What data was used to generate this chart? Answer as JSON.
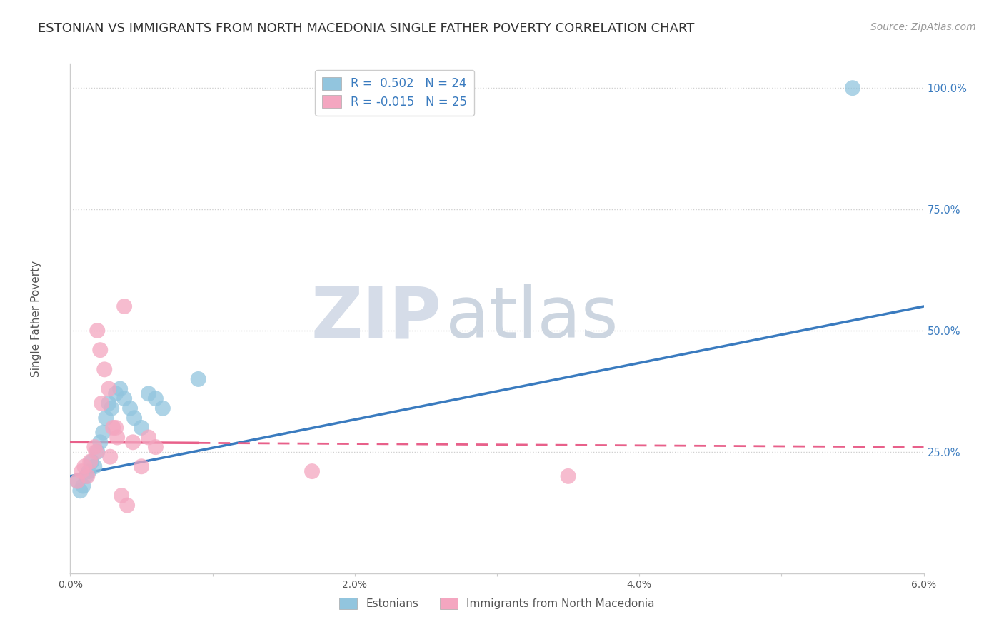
{
  "title": "ESTONIAN VS IMMIGRANTS FROM NORTH MACEDONIA SINGLE FATHER POVERTY CORRELATION CHART",
  "source": "Source: ZipAtlas.com",
  "ylabel": "Single Father Poverty",
  "xmin": 0.0,
  "xmax": 6.0,
  "ymin": 0.0,
  "ymax": 105.0,
  "yticks": [
    25,
    50,
    75,
    100
  ],
  "ytick_labels": [
    "25.0%",
    "50.0%",
    "75.0%",
    "100.0%"
  ],
  "xticks": [
    0,
    1,
    2,
    3,
    4,
    5,
    6
  ],
  "xtick_labels": [
    "0.0%",
    "",
    "2.0%",
    "",
    "4.0%",
    "",
    "6.0%"
  ],
  "watermark_part1": "ZIP",
  "watermark_part2": "atlas",
  "blue_R": " 0.502",
  "blue_N": "24",
  "pink_R": "-0.015",
  "pink_N": "25",
  "legend_label1": "Estonians",
  "legend_label2": "Immigrants from North Macedonia",
  "blue_color": "#92c5de",
  "pink_color": "#f4a6c0",
  "blue_line_color": "#3a7bbf",
  "pink_line_color": "#e8608a",
  "blue_line_x0": 0.0,
  "blue_line_y0": 20.0,
  "blue_line_x1": 6.0,
  "blue_line_y1": 55.0,
  "pink_line_x0": 0.0,
  "pink_line_y0": 27.0,
  "pink_line_x1": 6.0,
  "pink_line_y1": 26.0,
  "blue_scatter_x": [
    0.05,
    0.07,
    0.09,
    0.11,
    0.13,
    0.15,
    0.17,
    0.19,
    0.21,
    0.23,
    0.25,
    0.27,
    0.29,
    0.32,
    0.35,
    0.38,
    0.42,
    0.45,
    0.5,
    0.55,
    0.6,
    0.65,
    5.5,
    0.9
  ],
  "blue_scatter_y": [
    19,
    17,
    18,
    20,
    21,
    23,
    22,
    25,
    27,
    29,
    32,
    35,
    34,
    37,
    38,
    36,
    34,
    32,
    30,
    37,
    36,
    34,
    100,
    40
  ],
  "pink_scatter_x": [
    0.05,
    0.08,
    0.1,
    0.12,
    0.14,
    0.17,
    0.19,
    0.21,
    0.24,
    0.27,
    0.3,
    0.33,
    0.36,
    0.4,
    0.44,
    0.28,
    0.32,
    0.5,
    0.55,
    0.6,
    0.38,
    1.7,
    3.5,
    0.18,
    0.22
  ],
  "pink_scatter_y": [
    19,
    21,
    22,
    20,
    23,
    26,
    50,
    46,
    42,
    38,
    30,
    28,
    16,
    14,
    27,
    24,
    30,
    22,
    28,
    26,
    55,
    21,
    20,
    25,
    35
  ],
  "background_color": "#ffffff",
  "grid_color": "#d0d0d0",
  "spine_color": "#cccccc",
  "title_color": "#333333",
  "title_fontsize": 13,
  "legend_fontsize": 12,
  "tick_color": "#555555",
  "yticklabel_color": "#3a7bbf",
  "source_color": "#999999"
}
